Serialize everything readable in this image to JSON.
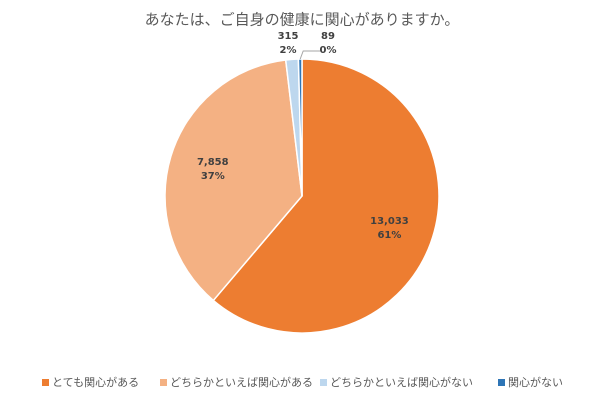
{
  "chart_data": {
    "type": "pie",
    "title": "あなたは、ご自身の健康に関心がありますか。",
    "categories": [
      "とても関心がある",
      "どちらかといえば関心がある",
      "どちらかといえば関心がない",
      "関心がない"
    ],
    "values": [
      13033,
      7858,
      315,
      89
    ],
    "value_labels": [
      "13,033",
      "7,858",
      "315",
      "89"
    ],
    "percent_labels": [
      "61%",
      "37%",
      "2%",
      "0%"
    ],
    "colors": [
      "#ed7d31",
      "#f4b183",
      "#bdd7ee",
      "#2e75b6"
    ],
    "legend": "bottom"
  }
}
